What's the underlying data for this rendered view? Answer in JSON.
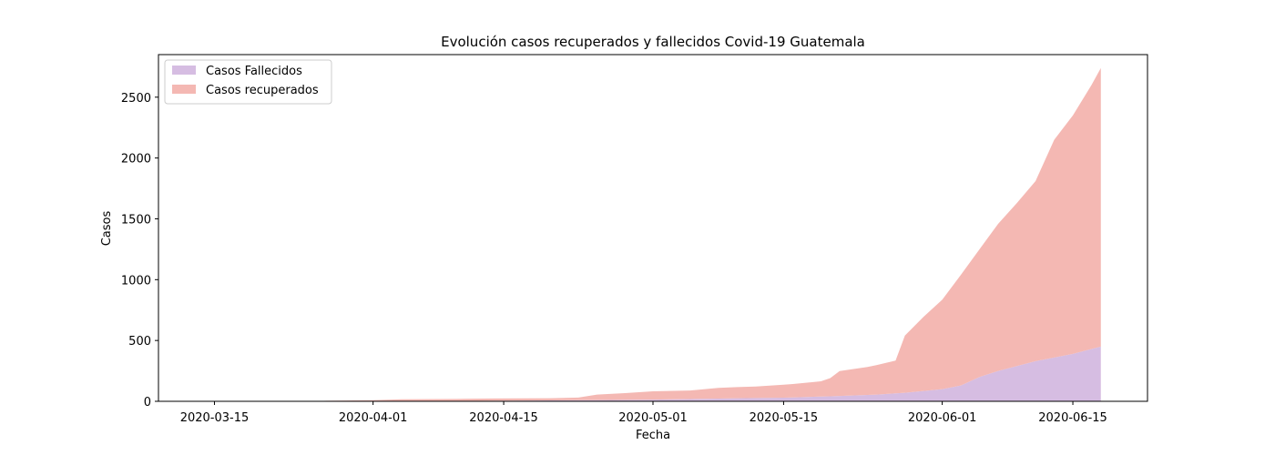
{
  "chart_data": {
    "type": "area",
    "stacked": true,
    "title": "Evolución casos recuperados y fallecidos Covid-19 Guatemala",
    "xlabel": "Fecha",
    "ylabel": "Casos",
    "xlim": [
      "2020-03-09",
      "2020-06-23"
    ],
    "ylim": [
      0,
      2850
    ],
    "x_ticks": [
      "2020-03-15",
      "2020-04-01",
      "2020-04-15",
      "2020-05-01",
      "2020-05-15",
      "2020-06-01",
      "2020-06-15"
    ],
    "y_ticks": [
      0,
      500,
      1000,
      1500,
      2000,
      2500
    ],
    "legend_position": "upper-left",
    "grid": false,
    "series": [
      {
        "name": "Casos Fallecidos",
        "color": "#d6bde2",
        "points": [
          [
            "2020-03-13",
            0
          ],
          [
            "2020-03-30",
            1
          ],
          [
            "2020-04-10",
            3
          ],
          [
            "2020-04-20",
            7
          ],
          [
            "2020-05-01",
            14
          ],
          [
            "2020-05-10",
            25
          ],
          [
            "2020-05-15",
            30
          ],
          [
            "2020-05-20",
            41
          ],
          [
            "2020-05-25",
            55
          ],
          [
            "2020-05-28",
            70
          ],
          [
            "2020-06-01",
            100
          ],
          [
            "2020-06-03",
            130
          ],
          [
            "2020-06-05",
            200
          ],
          [
            "2020-06-07",
            250
          ],
          [
            "2020-06-09",
            290
          ],
          [
            "2020-06-11",
            330
          ],
          [
            "2020-06-13",
            360
          ],
          [
            "2020-06-15",
            390
          ],
          [
            "2020-06-18",
            450
          ]
        ]
      },
      {
        "name": "Casos recuperados",
        "color": "#f4b8b3",
        "points": [
          [
            "2020-03-13",
            0
          ],
          [
            "2020-03-26",
            0
          ],
          [
            "2020-03-27",
            4
          ],
          [
            "2020-04-01",
            8
          ],
          [
            "2020-04-04",
            15
          ],
          [
            "2020-04-10",
            17
          ],
          [
            "2020-04-14",
            19
          ],
          [
            "2020-04-20",
            18
          ],
          [
            "2020-04-23",
            22
          ],
          [
            "2020-04-25",
            45
          ],
          [
            "2020-04-28",
            55
          ],
          [
            "2020-05-01",
            68
          ],
          [
            "2020-05-05",
            70
          ],
          [
            "2020-05-08",
            88
          ],
          [
            "2020-05-12",
            95
          ],
          [
            "2020-05-16",
            110
          ],
          [
            "2020-05-19",
            126
          ],
          [
            "2020-05-20",
            150
          ],
          [
            "2020-05-21",
            205
          ],
          [
            "2020-05-24",
            230
          ],
          [
            "2020-05-27",
            270
          ],
          [
            "2020-05-28",
            470
          ],
          [
            "2020-05-30",
            610
          ],
          [
            "2020-06-01",
            735
          ],
          [
            "2020-06-03",
            910
          ],
          [
            "2020-06-05",
            1050
          ],
          [
            "2020-06-07",
            1210
          ],
          [
            "2020-06-09",
            1340
          ],
          [
            "2020-06-11",
            1480
          ],
          [
            "2020-06-13",
            1790
          ],
          [
            "2020-06-15",
            1960
          ],
          [
            "2020-06-17",
            2170
          ],
          [
            "2020-06-18",
            2290
          ]
        ]
      }
    ]
  }
}
